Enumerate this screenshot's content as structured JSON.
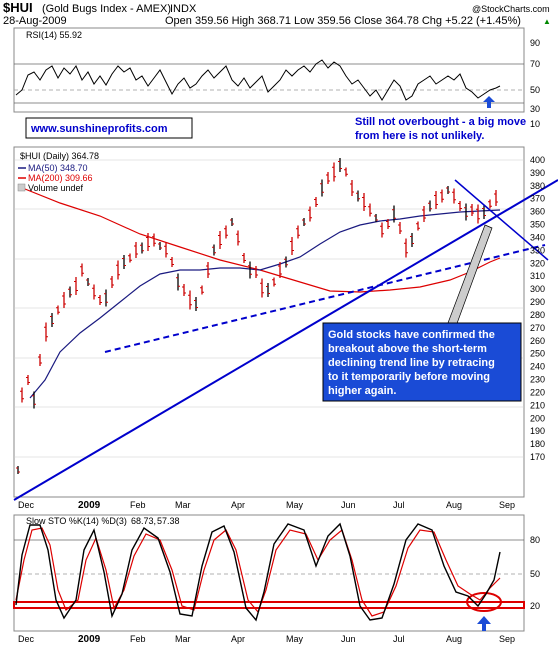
{
  "header": {
    "symbol": "$HUI",
    "name": "(Gold Bugs Index - AMEX)",
    "exchange": "INDX",
    "date": "28-Aug-2009",
    "ohlc": "Open 359.56  High 368.71  Low 359.56  Close 364.78  Chg +5.22 (+1.45%)",
    "ohlc_arrow": "▲",
    "copyright": "@StockCharts.com"
  },
  "rsi_panel": {
    "label": "RSI(14) 55.92",
    "ticks": [
      "90",
      "70",
      "50",
      "30",
      "10"
    ]
  },
  "price_panel": {
    "legend": {
      "price": "$HUI (Daily) 364.78",
      "ma50": "MA(50) 348.70",
      "ma200": "MA(200) 309.66",
      "volume": "Volume undef"
    },
    "ticks": [
      "400",
      "390",
      "380",
      "370",
      "360",
      "350",
      "340",
      "330",
      "320",
      "310",
      "300",
      "290",
      "280",
      "270",
      "260",
      "250",
      "240",
      "230",
      "220",
      "210",
      "200",
      "190",
      "180",
      "170"
    ],
    "website": "www.sunshineprofits.com",
    "note_top": [
      "Still not overbought - a big move",
      "from here is not unlikely."
    ],
    "note_box": [
      "Gold stocks have confirmed the",
      "breakout above the short-term",
      "declining trend line by retracing",
      "to it temporarily before moving",
      "higher again."
    ]
  },
  "x_axis": {
    "months": [
      "Dec",
      "2009",
      "Feb",
      "Mar",
      "Apr",
      "May",
      "Jun",
      "Jul",
      "Aug",
      "Sep"
    ]
  },
  "sto_panel": {
    "label_prefix": "Slow STO %K(14) %D(3)",
    "k_value": "68.73,",
    "d_value": "57.38",
    "ticks": [
      "80",
      "50",
      "20"
    ]
  },
  "colors": {
    "price_bar": "#cc0000",
    "ma50": "#1a1a80",
    "ma200": "#dd0000",
    "trend": "#0000cc",
    "annotation_bg": "#1a4bd6",
    "sto_k": "#000000",
    "sto_d": "#dd0000",
    "rsi_line": "#000000",
    "highlight": "#dd0000"
  },
  "chart_data": [
    {
      "type": "line",
      "title": "RSI(14) 55.92",
      "ylim": [
        0,
        100
      ],
      "x": [
        "Dec",
        "2009",
        "Feb",
        "Mar",
        "Apr",
        "May",
        "Jun",
        "Jul",
        "Aug",
        "Sep"
      ],
      "series": [
        {
          "name": "RSI(14)",
          "values": [
            45,
            65,
            55,
            48,
            57,
            70,
            44,
            40,
            60,
            55
          ]
        }
      ],
      "reference_lines": [
        70,
        50,
        30
      ]
    },
    {
      "type": "line",
      "title": "$HUI (Daily) 364.78",
      "ylim": [
        165,
        405
      ],
      "x": [
        "Dec",
        "2009",
        "Feb",
        "Mar",
        "Apr",
        "May",
        "Jun",
        "Jul",
        "Aug",
        "Sep"
      ],
      "series": [
        {
          "name": "$HUI (Daily) 364.78",
          "values": [
            205,
            255,
            310,
            285,
            295,
            340,
            375,
            320,
            365,
            364.78
          ]
        },
        {
          "name": "MA(50) 348.70",
          "values": [
            200,
            218,
            265,
            290,
            285,
            310,
            345,
            340,
            350,
            348.7
          ]
        },
        {
          "name": "MA(200) 309.66",
          "values": [
            370,
            355,
            330,
            325,
            318,
            300,
            295,
            298,
            305,
            309.66
          ]
        }
      ]
    },
    {
      "type": "line",
      "title": "Slow STO %K(14) %D(3)",
      "ylim": [
        0,
        100
      ],
      "x": [
        "Dec",
        "2009",
        "Feb",
        "Mar",
        "Apr",
        "May",
        "Jun",
        "Jul",
        "Aug",
        "Sep"
      ],
      "series": [
        {
          "name": "%K(14)",
          "values": [
            90,
            20,
            85,
            15,
            90,
            88,
            15,
            85,
            20,
            68.73
          ]
        },
        {
          "name": "%D(3)",
          "values": [
            85,
            25,
            80,
            20,
            85,
            85,
            20,
            80,
            25,
            57.38
          ]
        }
      ],
      "reference_lines": [
        80,
        50,
        20
      ]
    }
  ]
}
